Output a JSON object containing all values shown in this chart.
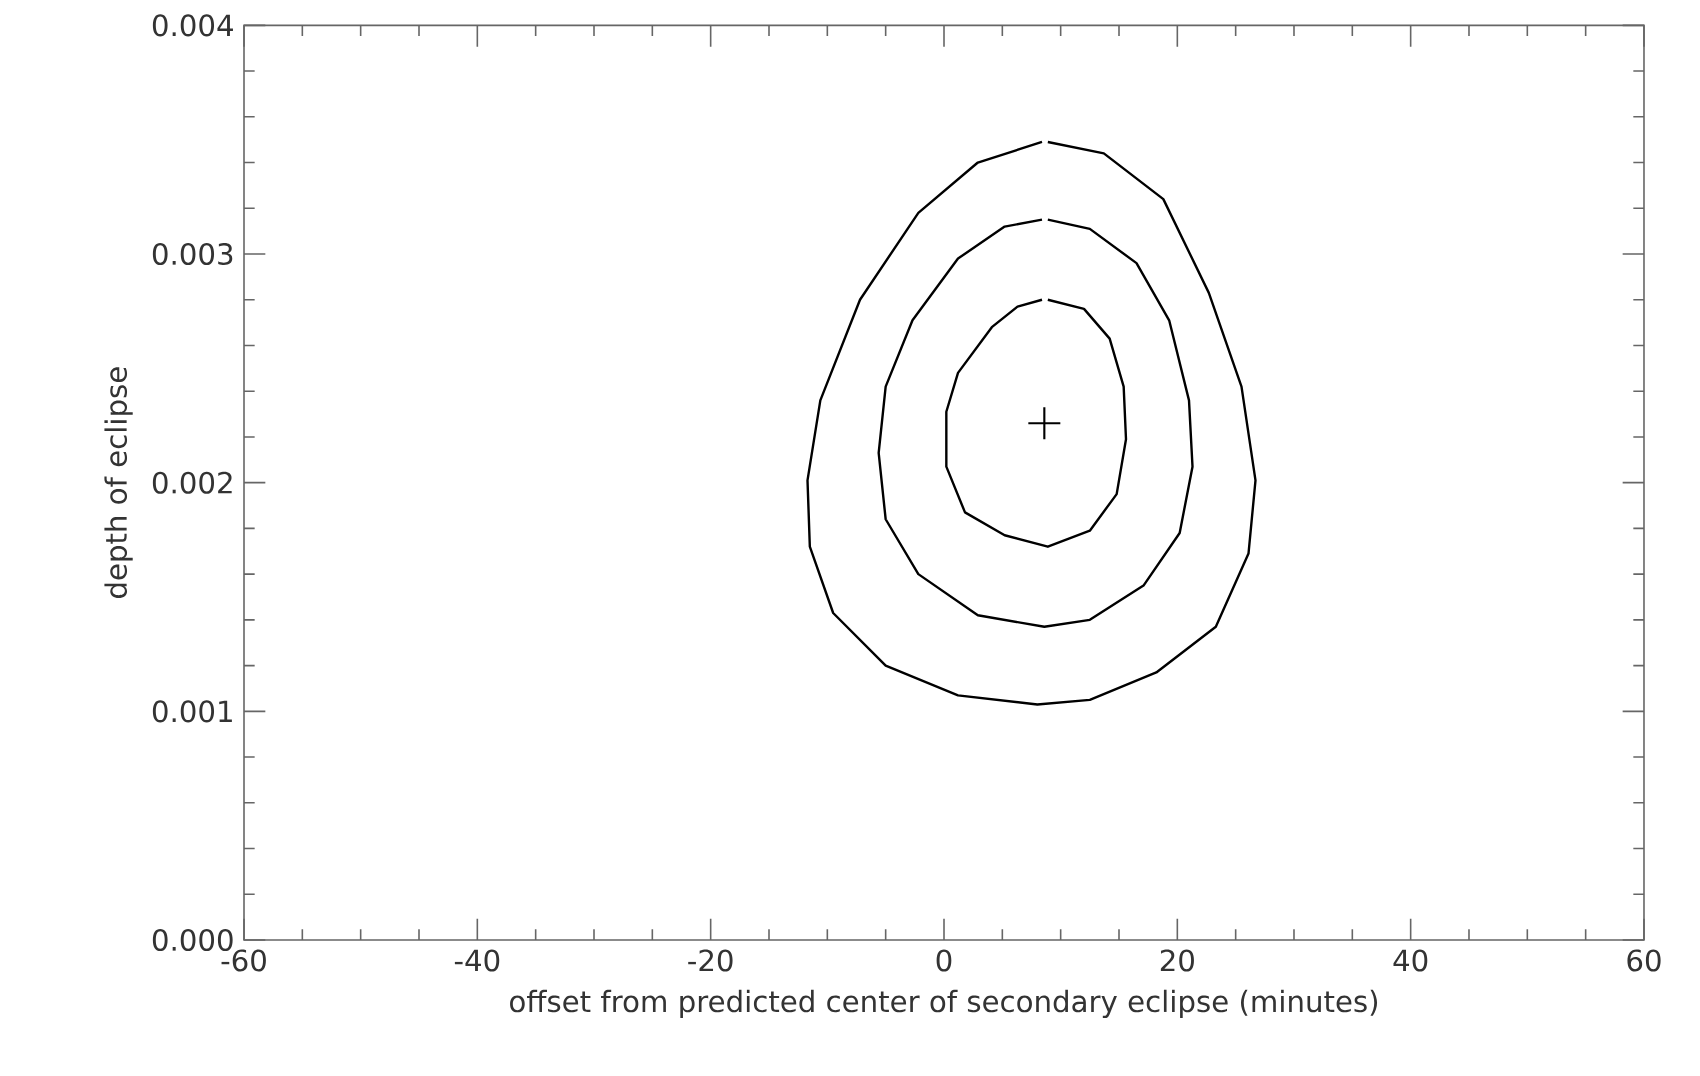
{
  "chart_data": {
    "type": "line",
    "xlabel": "offset from predicted center of secondary eclipse (minutes)",
    "ylabel": "depth of eclipse",
    "xlim": [
      -60,
      60
    ],
    "ylim": [
      0,
      0.004
    ],
    "xticks": [
      -60,
      -40,
      -20,
      0,
      20,
      40,
      60
    ],
    "yticks": [
      {
        "value": 0,
        "label": "0.000"
      },
      {
        "value": 0.001,
        "label": "0.001"
      },
      {
        "value": 0.002,
        "label": "0.002"
      },
      {
        "value": 0.003,
        "label": "0.003"
      },
      {
        "value": 0.004,
        "label": "0.004"
      }
    ],
    "grid": false,
    "series": [
      {
        "color": "#000000",
        "x": [
          8.9,
          13.7,
          18.8,
          22.7,
          25.5,
          26.7,
          26.1,
          23.3,
          18.2,
          12.5,
          8.0,
          1.2,
          -5.0,
          -9.5,
          -11.5,
          -11.7,
          -10.6,
          -7.2,
          -2.2,
          2.9,
          8.4
        ],
        "values": [
          0.00349,
          0.00344,
          0.00324,
          0.00283,
          0.00242,
          0.00201,
          0.00169,
          0.00137,
          0.00117,
          0.00105,
          0.00103,
          0.00107,
          0.0012,
          0.00143,
          0.00172,
          0.00201,
          0.00236,
          0.0028,
          0.00318,
          0.0034,
          0.00349
        ]
      },
      {
        "color": "#000000",
        "x": [
          8.9,
          12.5,
          16.5,
          19.3,
          21.0,
          21.3,
          20.2,
          17.1,
          12.5,
          8.6,
          2.9,
          -2.2,
          -5.0,
          -5.6,
          -5.0,
          -2.7,
          1.2,
          5.2,
          8.4
        ],
        "values": [
          0.00315,
          0.00311,
          0.00296,
          0.00271,
          0.00236,
          0.00207,
          0.00178,
          0.00155,
          0.0014,
          0.00137,
          0.00142,
          0.0016,
          0.00184,
          0.00213,
          0.00242,
          0.00271,
          0.00298,
          0.00312,
          0.00315
        ]
      },
      {
        "color": "#000000",
        "x": [
          8.9,
          12.0,
          14.2,
          15.4,
          15.6,
          14.8,
          12.5,
          8.9,
          5.2,
          1.8,
          0.2,
          0.2,
          1.2,
          4.1,
          6.3,
          8.4
        ],
        "values": [
          0.0028,
          0.00276,
          0.00263,
          0.00242,
          0.00219,
          0.00195,
          0.00179,
          0.00172,
          0.00177,
          0.00187,
          0.00207,
          0.00231,
          0.00248,
          0.00268,
          0.00277,
          0.0028
        ]
      },
      {
        "type": "scatter",
        "color": "#000000",
        "marker": "cross",
        "x": [
          8.6
        ],
        "values": [
          0.00226
        ]
      }
    ]
  }
}
